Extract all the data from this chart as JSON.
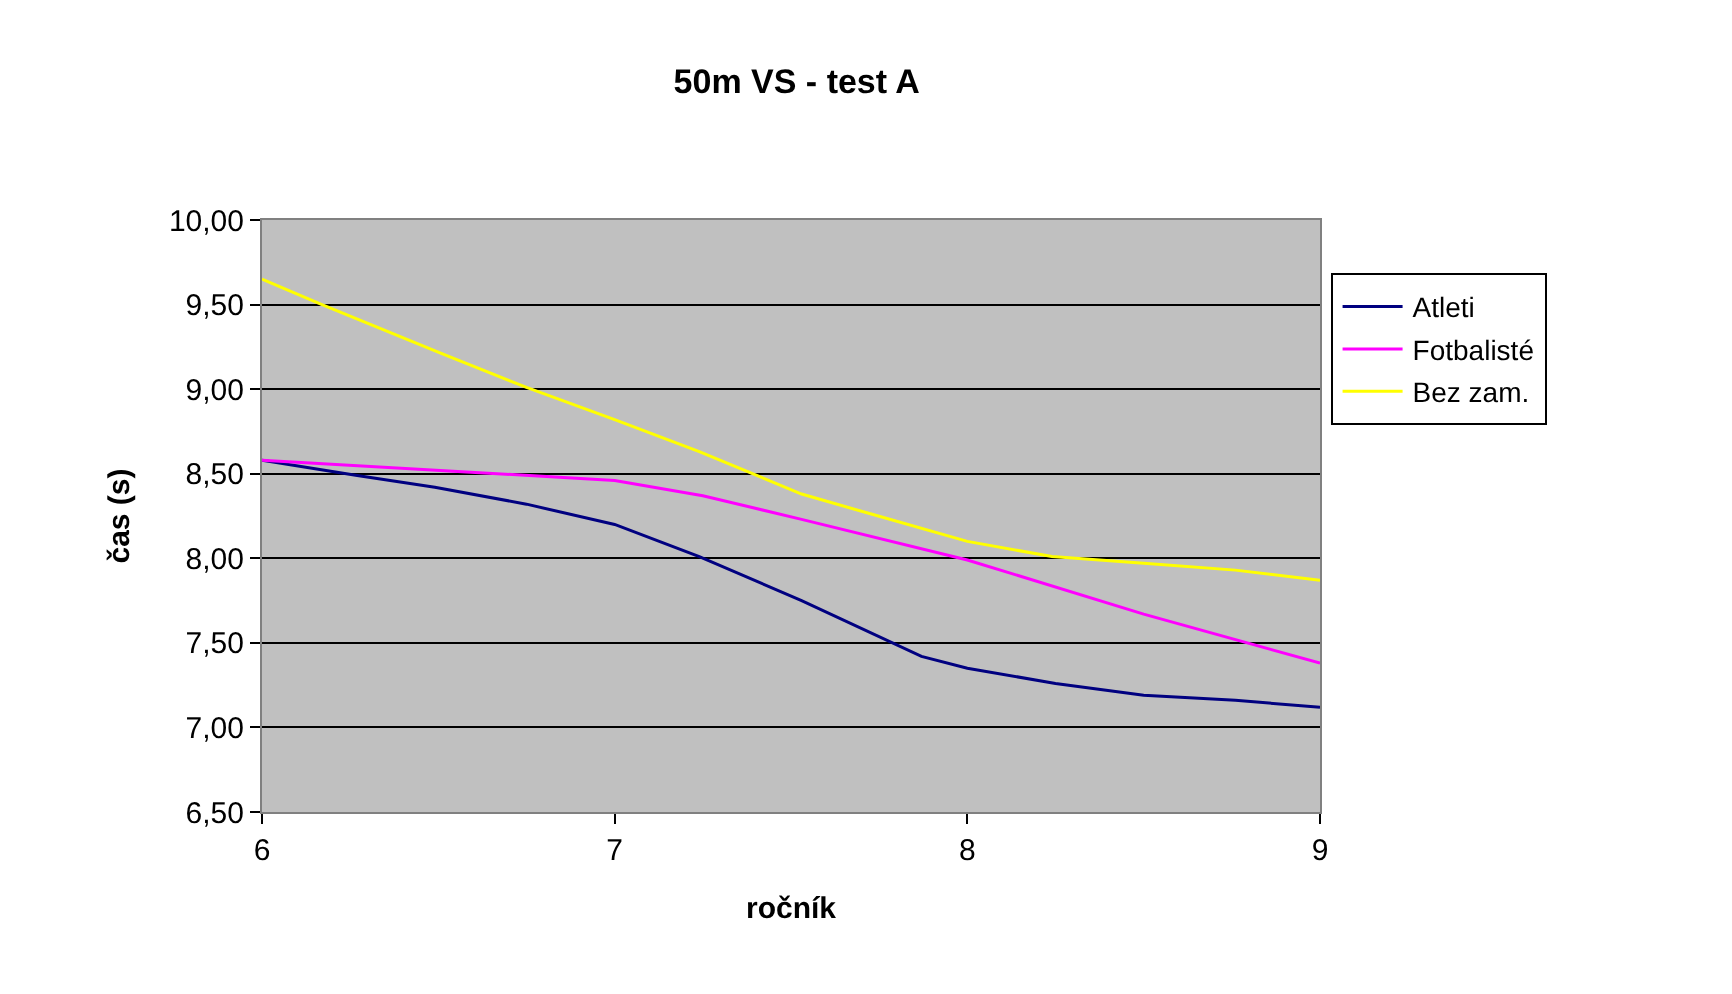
{
  "chart_data": {
    "type": "line",
    "title": "50m VS - test A",
    "xlabel": "ročník",
    "ylabel": "čas (s)",
    "xlim": [
      6,
      9
    ],
    "xticks": [
      6,
      7,
      8,
      9
    ],
    "ylim": [
      6.5,
      10
    ],
    "yticks": [
      {
        "value": 6.5,
        "label": "6,50"
      },
      {
        "value": 7,
        "label": "7,00"
      },
      {
        "value": 7.5,
        "label": "7,50"
      },
      {
        "value": 8,
        "label": "8,00"
      },
      {
        "value": 8.5,
        "label": "8,50"
      },
      {
        "value": 9,
        "label": "9,00"
      },
      {
        "value": 9.5,
        "label": "9,50"
      },
      {
        "value": 10,
        "label": "10,00"
      }
    ],
    "grid": "y",
    "legend": "top right",
    "marker": "none",
    "line_style": "solid",
    "series": [
      {
        "name": "Atleti",
        "color": "#000080",
        "x": [
          6,
          6.27,
          6.49,
          6.75,
          7,
          7.24,
          7.53,
          7.87,
          8,
          8.25,
          8.5,
          8.76,
          9
        ],
        "values": [
          8.58,
          8.49,
          8.42,
          8.32,
          8.2,
          8.01,
          7.75,
          7.42,
          7.35,
          7.26,
          7.19,
          7.16,
          7.12
        ]
      },
      {
        "name": "Fotbalisté",
        "color": "#ff00ff",
        "x": [
          6,
          7,
          7.25,
          7.53,
          8,
          8.5,
          9
        ],
        "values": [
          8.58,
          8.46,
          8.37,
          8.23,
          7.99,
          7.67,
          7.38
        ]
      },
      {
        "name": "Bez zam.",
        "color": "#ffff00",
        "x": [
          6,
          6.17,
          6.51,
          6.75,
          7,
          7.24,
          7.53,
          7.73,
          8,
          8.24,
          8.5,
          8.76,
          9
        ],
        "values": [
          9.65,
          9.5,
          9.21,
          9.01,
          8.82,
          8.63,
          8.38,
          8.26,
          8.1,
          8.01,
          7.97,
          7.93,
          7.87
        ]
      }
    ]
  }
}
